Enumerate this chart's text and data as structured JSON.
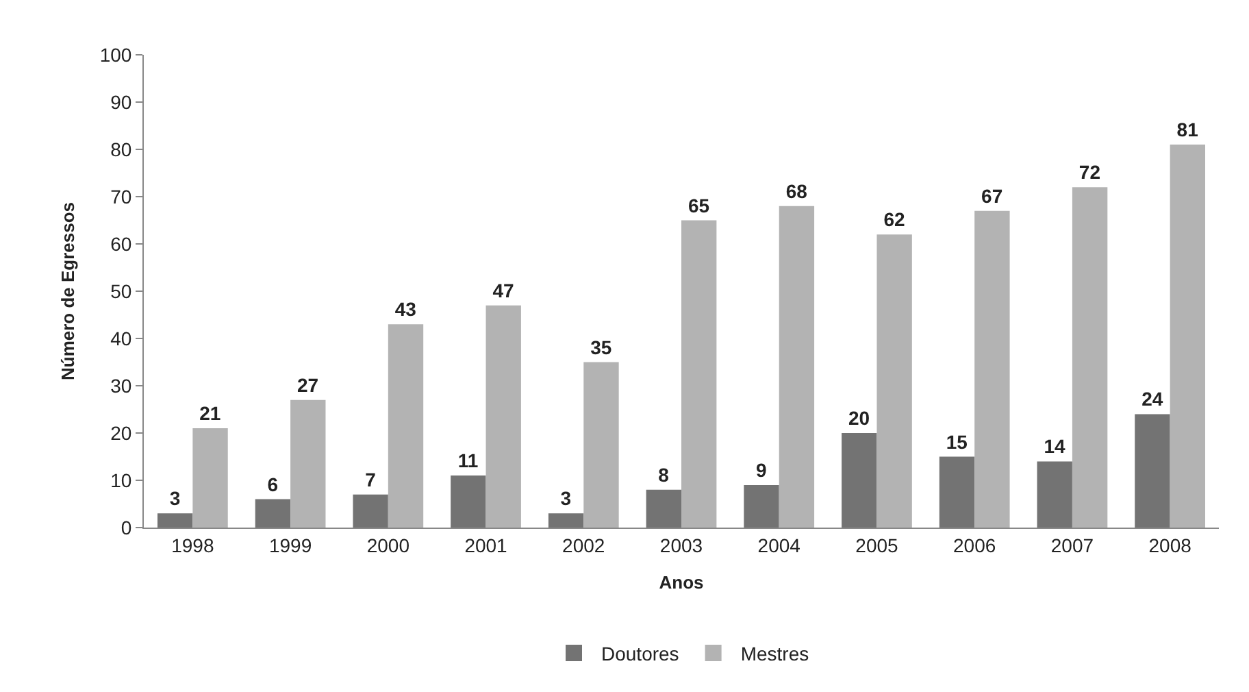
{
  "chart_data": {
    "type": "bar",
    "xlabel": "Anos",
    "ylabel": "Número de Egressos",
    "categories": [
      "1998",
      "1999",
      "2000",
      "2001",
      "2002",
      "2003",
      "2004",
      "2005",
      "2006",
      "2007",
      "2008"
    ],
    "series": [
      {
        "name": "Doutores",
        "color": "#737373",
        "values": [
          3,
          6,
          7,
          11,
          3,
          8,
          9,
          20,
          15,
          14,
          24
        ]
      },
      {
        "name": "Mestres",
        "color": "#b3b3b3",
        "values": [
          21,
          27,
          43,
          47,
          35,
          65,
          68,
          62,
          67,
          72,
          81
        ]
      }
    ],
    "ylim": [
      0,
      100
    ],
    "yticks": [
      0,
      10,
      20,
      30,
      40,
      50,
      60,
      70,
      80,
      90,
      100
    ],
    "grid": false,
    "legend": "bottom",
    "data_labels": true
  }
}
